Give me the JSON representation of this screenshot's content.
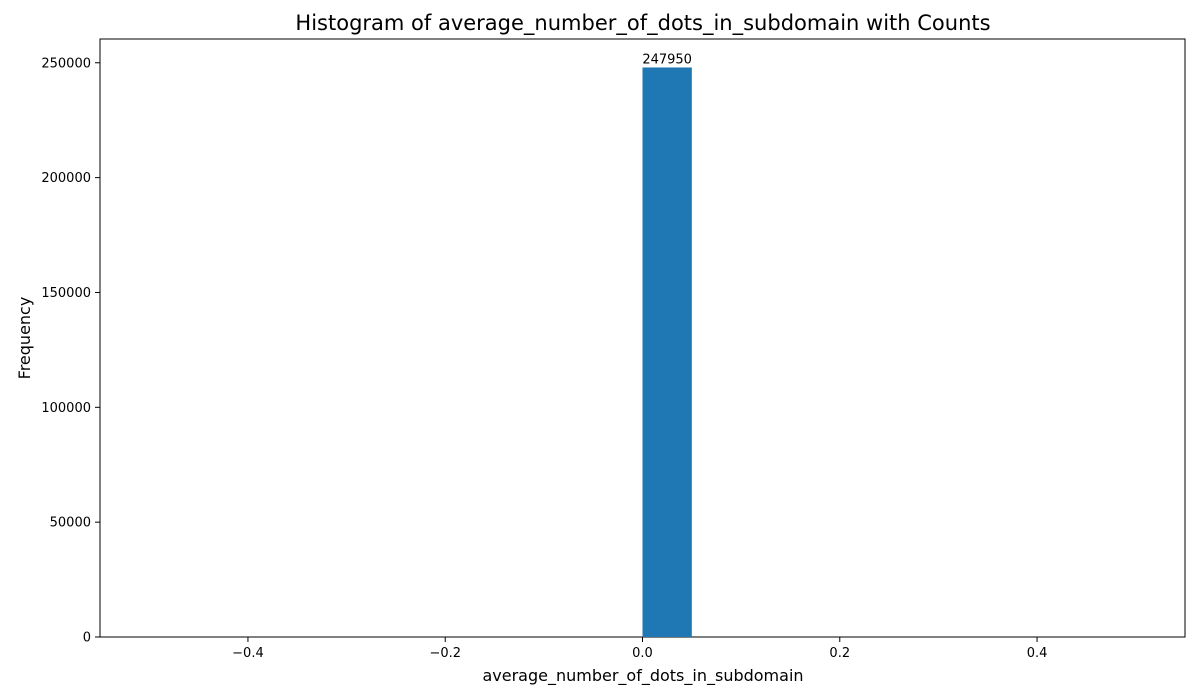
{
  "chart_data": {
    "type": "bar",
    "title": "Histogram of average_number_of_dots_in_subdomain with Counts",
    "xlabel": "average_number_of_dots_in_subdomain",
    "ylabel": "Frequency",
    "xlim": [
      -0.55,
      0.55
    ],
    "ylim": [
      0,
      260347.5
    ],
    "xticks": [
      -0.4,
      -0.2,
      0.0,
      0.2,
      0.4
    ],
    "xtick_labels": [
      "−0.4",
      "−0.2",
      "0.0",
      "0.2",
      "0.4"
    ],
    "yticks": [
      0,
      50000,
      100000,
      150000,
      200000,
      250000
    ],
    "ytick_labels": [
      "0",
      "50000",
      "100000",
      "150000",
      "200000",
      "250000"
    ],
    "bins": [
      {
        "x0": 0.0,
        "x1": 0.05,
        "value": 247950,
        "label": "247950"
      }
    ],
    "bar_color": "#1f77b4",
    "grid": false,
    "legend": "none"
  }
}
